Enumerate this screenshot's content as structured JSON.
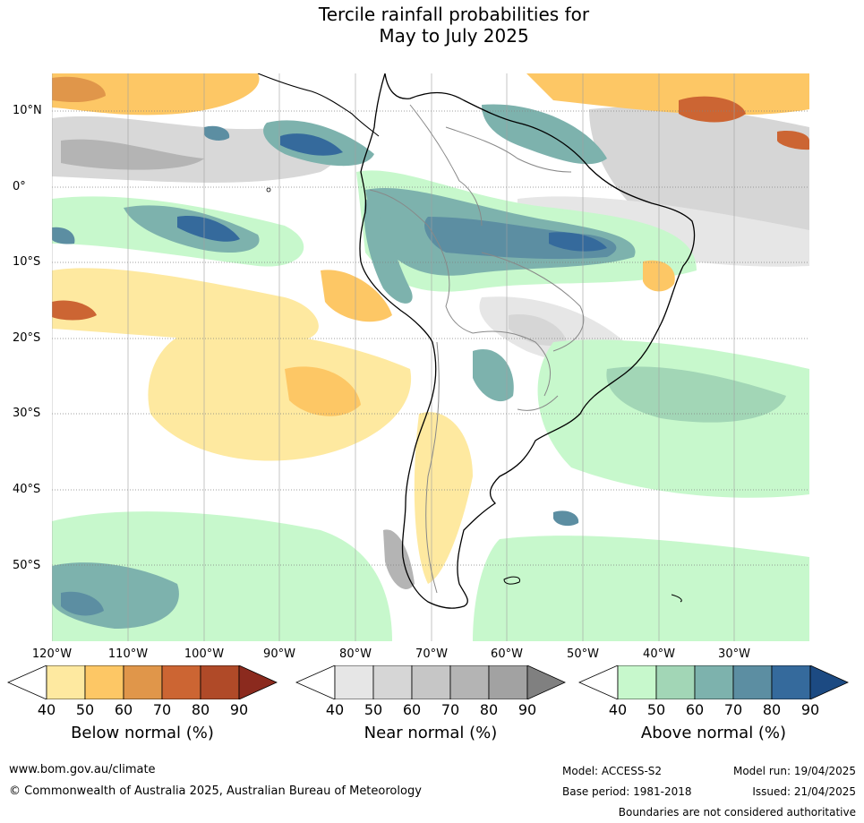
{
  "title_line1": "Tercile rainfall probabilities for",
  "title_line2": "May to July 2025",
  "lat_labels": [
    "10°N",
    "0°",
    "10°S",
    "20°S",
    "30°S",
    "40°S",
    "50°S"
  ],
  "lon_labels": [
    "120°W",
    "110°W",
    "100°W",
    "90°W",
    "80°W",
    "70°W",
    "60°W",
    "50°W",
    "40°W",
    "30°W"
  ],
  "colorbars": [
    {
      "title": "Below normal (%)",
      "ticks": [
        "40",
        "50",
        "60",
        "70",
        "80",
        "90"
      ],
      "colors": [
        "#ffffff",
        "#fee9a0",
        "#fdc765",
        "#e0964a",
        "#cc6533",
        "#b04a28",
        "#8b2a1e"
      ]
    },
    {
      "title": "Near normal (%)",
      "ticks": [
        "40",
        "50",
        "60",
        "70",
        "80",
        "90"
      ],
      "colors": [
        "#ffffff",
        "#e6e6e6",
        "#d6d6d6",
        "#c6c6c6",
        "#b4b4b4",
        "#a2a2a2",
        "#808080"
      ]
    },
    {
      "title": "Above normal (%)",
      "ticks": [
        "40",
        "50",
        "60",
        "70",
        "80",
        "90"
      ],
      "colors": [
        "#ffffff",
        "#c7f8cc",
        "#a2d6b6",
        "#7db2ad",
        "#5c8ea2",
        "#356a9c",
        "#1c4a82"
      ]
    }
  ],
  "footer": {
    "url": "www.bom.gov.au/climate",
    "copyright": "© Commonwealth of Australia 2025, Australian Bureau of Meteorology",
    "model": "Model: ACCESS-S2",
    "base_period": "Base period: 1981-2018",
    "model_run": "Model run: 19/04/2025",
    "issued": "Issued: 21/04/2025",
    "boundaries": "Boundaries are not considered authoritative"
  }
}
